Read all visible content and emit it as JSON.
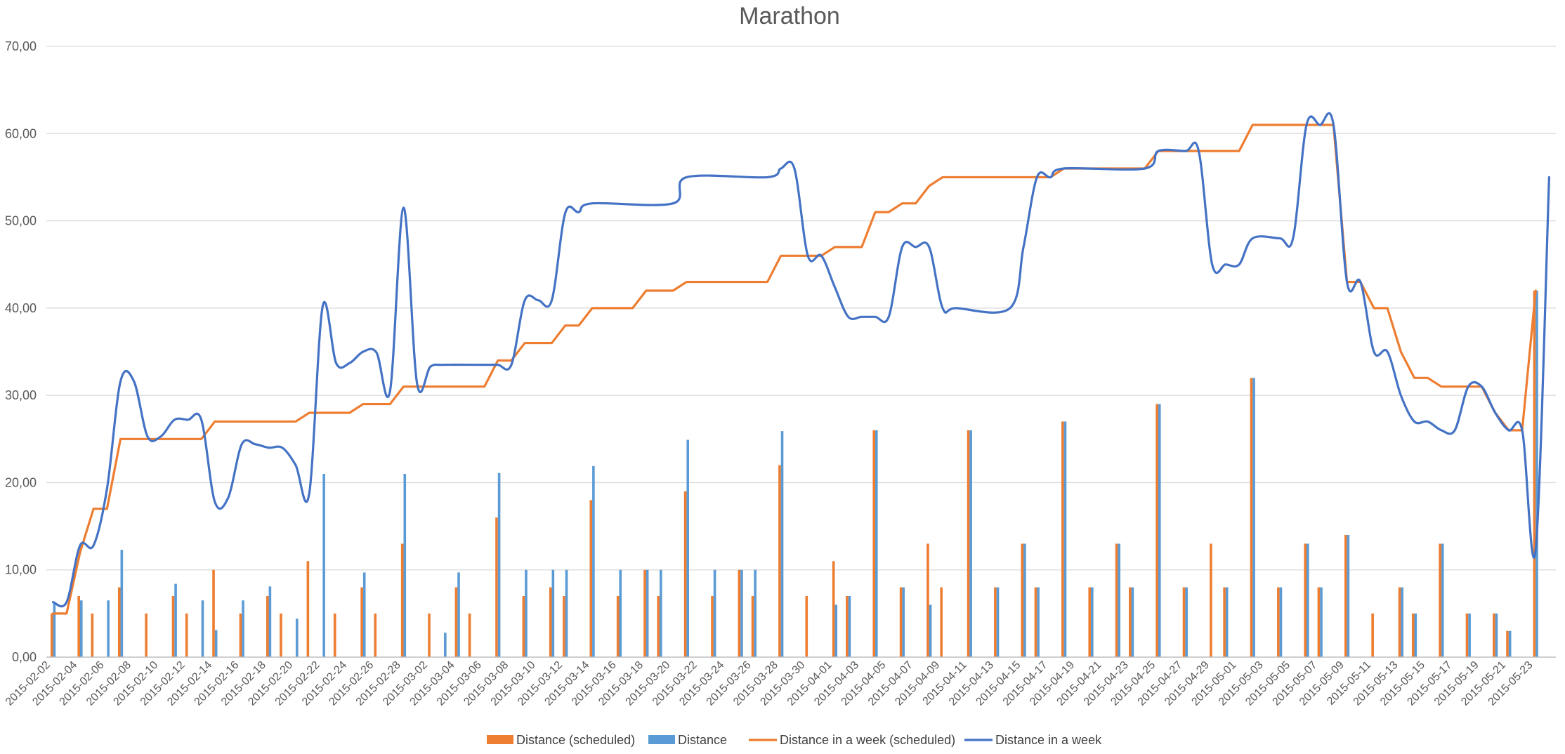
{
  "chart_data": {
    "type": "bar",
    "title": "Marathon",
    "ylim": [
      0,
      70
    ],
    "yticks": [
      "0,00",
      "10,00",
      "20,00",
      "30,00",
      "40,00",
      "50,00",
      "60,00",
      "70,00"
    ],
    "grid": true,
    "legend_position": "bottom",
    "x_start": "2015-02-02",
    "x_end": "2015-05-24",
    "x_tick_labels": [
      "2015-02-02",
      "2015-02-04",
      "2015-02-06",
      "2015-02-08",
      "2015-02-10",
      "2015-02-12",
      "2015-02-14",
      "2015-02-16",
      "2015-02-18",
      "2015-02-20",
      "2015-02-22",
      "2015-02-24",
      "2015-02-26",
      "2015-02-28",
      "2015-03-02",
      "2015-03-04",
      "2015-03-06",
      "2015-03-08",
      "2015-03-10",
      "2015-03-12",
      "2015-03-14",
      "2015-03-16",
      "2015-03-18",
      "2015-03-20",
      "2015-03-22",
      "2015-03-24",
      "2015-03-26",
      "2015-03-28",
      "2015-03-30",
      "2015-04-01",
      "2015-04-03",
      "2015-04-05",
      "2015-04-07",
      "2015-04-09",
      "2015-04-11",
      "2015-04-13",
      "2015-04-15",
      "2015-04-17",
      "2015-04-19",
      "2015-04-21",
      "2015-04-23",
      "2015-04-25",
      "2015-04-27",
      "2015-04-29",
      "2015-05-01",
      "2015-05-03",
      "2015-05-05",
      "2015-05-07",
      "2015-05-09",
      "2015-05-11",
      "2015-05-13",
      "2015-05-15",
      "2015-05-17",
      "2015-05-19",
      "2015-05-21",
      "2015-05-23"
    ],
    "colors": {
      "scheduled_bar": "#ED7D31",
      "distance_bar": "#5B9BD5",
      "week_scheduled_line": "#ED7D31",
      "week_line": "#4472C4",
      "grid": "#D9D9D9",
      "axis": "#BFBFBF"
    },
    "series": [
      {
        "name": "Distance (scheduled)",
        "type": "bar",
        "points": [
          [
            "2015-02-02",
            5
          ],
          [
            "2015-02-04",
            7
          ],
          [
            "2015-02-05",
            5
          ],
          [
            "2015-02-07",
            8
          ],
          [
            "2015-02-09",
            5
          ],
          [
            "2015-02-11",
            7
          ],
          [
            "2015-02-12",
            5
          ],
          [
            "2015-02-14",
            10
          ],
          [
            "2015-02-16",
            5
          ],
          [
            "2015-02-18",
            7
          ],
          [
            "2015-02-19",
            5
          ],
          [
            "2015-02-21",
            11
          ],
          [
            "2015-02-23",
            5
          ],
          [
            "2015-02-25",
            8
          ],
          [
            "2015-02-26",
            5
          ],
          [
            "2015-02-28",
            13
          ],
          [
            "2015-03-02",
            5
          ],
          [
            "2015-03-04",
            8
          ],
          [
            "2015-03-05",
            5
          ],
          [
            "2015-03-07",
            16
          ],
          [
            "2015-03-09",
            7
          ],
          [
            "2015-03-11",
            8
          ],
          [
            "2015-03-12",
            7
          ],
          [
            "2015-03-14",
            18
          ],
          [
            "2015-03-16",
            7
          ],
          [
            "2015-03-18",
            10
          ],
          [
            "2015-03-19",
            7
          ],
          [
            "2015-03-21",
            19
          ],
          [
            "2015-03-23",
            7
          ],
          [
            "2015-03-25",
            10
          ],
          [
            "2015-03-26",
            7
          ],
          [
            "2015-03-28",
            22
          ],
          [
            "2015-03-30",
            7
          ],
          [
            "2015-04-01",
            11
          ],
          [
            "2015-04-02",
            7
          ],
          [
            "2015-04-04",
            26
          ],
          [
            "2015-04-06",
            8
          ],
          [
            "2015-04-08",
            13
          ],
          [
            "2015-04-09",
            8
          ],
          [
            "2015-04-11",
            26
          ],
          [
            "2015-04-13",
            8
          ],
          [
            "2015-04-15",
            13
          ],
          [
            "2015-04-16",
            8
          ],
          [
            "2015-04-18",
            27
          ],
          [
            "2015-04-20",
            8
          ],
          [
            "2015-04-22",
            13
          ],
          [
            "2015-04-23",
            8
          ],
          [
            "2015-04-25",
            29
          ],
          [
            "2015-04-27",
            8
          ],
          [
            "2015-04-29",
            13
          ],
          [
            "2015-04-30",
            8
          ],
          [
            "2015-05-02",
            32
          ],
          [
            "2015-05-04",
            8
          ],
          [
            "2015-05-06",
            13
          ],
          [
            "2015-05-07",
            8
          ],
          [
            "2015-05-09",
            14
          ],
          [
            "2015-05-11",
            5
          ],
          [
            "2015-05-13",
            8
          ],
          [
            "2015-05-14",
            5
          ],
          [
            "2015-05-16",
            13
          ],
          [
            "2015-05-18",
            5
          ],
          [
            "2015-05-20",
            5
          ],
          [
            "2015-05-21",
            3
          ],
          [
            "2015-05-23",
            42
          ]
        ]
      },
      {
        "name": "Distance",
        "type": "bar",
        "points": [
          [
            "2015-02-02",
            6.3
          ],
          [
            "2015-02-04",
            6.5
          ],
          [
            "2015-02-06",
            6.5
          ],
          [
            "2015-02-07",
            12.3
          ],
          [
            "2015-02-11",
            8.4
          ],
          [
            "2015-02-13",
            6.5
          ],
          [
            "2015-02-14",
            3.1
          ],
          [
            "2015-02-16",
            6.5
          ],
          [
            "2015-02-18",
            8.1
          ],
          [
            "2015-02-20",
            4.4
          ],
          [
            "2015-02-22",
            21
          ],
          [
            "2015-02-25",
            9.7
          ],
          [
            "2015-02-28",
            21
          ],
          [
            "2015-03-03",
            2.8
          ],
          [
            "2015-03-04",
            9.7
          ],
          [
            "2015-03-07",
            21.1
          ],
          [
            "2015-03-09",
            10
          ],
          [
            "2015-03-11",
            10
          ],
          [
            "2015-03-12",
            10
          ],
          [
            "2015-03-14",
            21.9
          ],
          [
            "2015-03-16",
            10
          ],
          [
            "2015-03-18",
            10
          ],
          [
            "2015-03-19",
            10
          ],
          [
            "2015-03-21",
            24.9
          ],
          [
            "2015-03-23",
            10
          ],
          [
            "2015-03-25",
            10
          ],
          [
            "2015-03-26",
            10
          ],
          [
            "2015-03-28",
            25.9
          ],
          [
            "2015-04-01",
            6
          ],
          [
            "2015-04-02",
            7
          ],
          [
            "2015-04-04",
            26
          ],
          [
            "2015-04-06",
            8
          ],
          [
            "2015-04-08",
            6
          ],
          [
            "2015-04-11",
            26
          ],
          [
            "2015-04-13",
            8
          ],
          [
            "2015-04-15",
            13
          ],
          [
            "2015-04-16",
            8
          ],
          [
            "2015-04-18",
            27
          ],
          [
            "2015-04-20",
            8
          ],
          [
            "2015-04-22",
            13
          ],
          [
            "2015-04-23",
            8
          ],
          [
            "2015-04-25",
            29
          ],
          [
            "2015-04-27",
            8
          ],
          [
            "2015-04-30",
            8
          ],
          [
            "2015-05-02",
            32
          ],
          [
            "2015-05-04",
            8
          ],
          [
            "2015-05-06",
            13
          ],
          [
            "2015-05-07",
            8
          ],
          [
            "2015-05-09",
            14
          ],
          [
            "2015-05-13",
            8
          ],
          [
            "2015-05-14",
            5
          ],
          [
            "2015-05-16",
            13
          ],
          [
            "2015-05-18",
            5
          ],
          [
            "2015-05-20",
            5
          ],
          [
            "2015-05-21",
            3
          ],
          [
            "2015-05-23",
            42
          ]
        ]
      },
      {
        "name": "Distance in a week (scheduled)",
        "type": "line",
        "points": [
          [
            "2015-02-02",
            5
          ],
          [
            "2015-02-03",
            5
          ],
          [
            "2015-02-04",
            12
          ],
          [
            "2015-02-05",
            17
          ],
          [
            "2015-02-06",
            17
          ],
          [
            "2015-02-07",
            25
          ],
          [
            "2015-02-08",
            25
          ],
          [
            "2015-02-13",
            25
          ],
          [
            "2015-02-14",
            27
          ],
          [
            "2015-02-20",
            27
          ],
          [
            "2015-02-21",
            28
          ],
          [
            "2015-02-24",
            28
          ],
          [
            "2015-02-25",
            29
          ],
          [
            "2015-02-27",
            29
          ],
          [
            "2015-02-28",
            31
          ],
          [
            "2015-03-06",
            31
          ],
          [
            "2015-03-07",
            34
          ],
          [
            "2015-03-08",
            34
          ],
          [
            "2015-03-09",
            36
          ],
          [
            "2015-03-11",
            36
          ],
          [
            "2015-03-12",
            38
          ],
          [
            "2015-03-13",
            38
          ],
          [
            "2015-03-14",
            40
          ],
          [
            "2015-03-17",
            40
          ],
          [
            "2015-03-18",
            42
          ],
          [
            "2015-03-20",
            42
          ],
          [
            "2015-03-21",
            43
          ],
          [
            "2015-03-27",
            43
          ],
          [
            "2015-03-28",
            46
          ],
          [
            "2015-03-31",
            46
          ],
          [
            "2015-04-01",
            47
          ],
          [
            "2015-04-03",
            47
          ],
          [
            "2015-04-04",
            51
          ],
          [
            "2015-04-05",
            51
          ],
          [
            "2015-04-06",
            52
          ],
          [
            "2015-04-07",
            52
          ],
          [
            "2015-04-08",
            54
          ],
          [
            "2015-04-09",
            55
          ],
          [
            "2015-04-17",
            55
          ],
          [
            "2015-04-18",
            56
          ],
          [
            "2015-04-24",
            56
          ],
          [
            "2015-04-25",
            58
          ],
          [
            "2015-05-01",
            58
          ],
          [
            "2015-05-02",
            61
          ],
          [
            "2015-05-08",
            61
          ],
          [
            "2015-05-09",
            43
          ],
          [
            "2015-05-10",
            43
          ],
          [
            "2015-05-11",
            40
          ],
          [
            "2015-05-12",
            40
          ],
          [
            "2015-05-13",
            35
          ],
          [
            "2015-05-14",
            32
          ],
          [
            "2015-05-15",
            32
          ],
          [
            "2015-05-16",
            31
          ],
          [
            "2015-05-19",
            31
          ],
          [
            "2015-05-20",
            28
          ],
          [
            "2015-05-21",
            26
          ],
          [
            "2015-05-22",
            26
          ],
          [
            "2015-05-23",
            42
          ]
        ]
      },
      {
        "name": "Distance in a week",
        "type": "line",
        "points": [
          [
            "2015-02-02",
            6.3
          ],
          [
            "2015-02-03",
            6.3
          ],
          [
            "2015-02-04",
            12.8
          ],
          [
            "2015-02-05",
            12.8
          ],
          [
            "2015-02-06",
            19.3
          ],
          [
            "2015-02-07",
            31.6
          ],
          [
            "2015-02-08",
            31.6
          ],
          [
            "2015-02-09",
            25.3
          ],
          [
            "2015-02-10",
            25.3
          ],
          [
            "2015-02-11",
            27.2
          ],
          [
            "2015-02-12",
            27.2
          ],
          [
            "2015-02-13",
            27.2
          ],
          [
            "2015-02-14",
            17.8
          ],
          [
            "2015-02-15",
            18.3
          ],
          [
            "2015-02-16",
            24.4
          ],
          [
            "2015-02-17",
            24.4
          ],
          [
            "2015-02-18",
            24
          ],
          [
            "2015-02-19",
            24
          ],
          [
            "2015-02-20",
            22
          ],
          [
            "2015-02-21",
            18.7
          ],
          [
            "2015-02-22",
            40.2
          ],
          [
            "2015-02-23",
            33.7
          ],
          [
            "2015-02-24",
            33.7
          ],
          [
            "2015-02-25",
            35
          ],
          [
            "2015-02-26",
            34.9
          ],
          [
            "2015-02-27",
            30.5
          ],
          [
            "2015-02-28",
            51.5
          ],
          [
            "2015-03-01",
            31.4
          ],
          [
            "2015-03-02",
            33.3
          ],
          [
            "2015-03-03",
            33.5
          ],
          [
            "2015-03-06",
            33.5
          ],
          [
            "2015-03-07",
            33.5
          ],
          [
            "2015-03-08",
            33.5
          ],
          [
            "2015-03-09",
            40.9
          ],
          [
            "2015-03-10",
            40.9
          ],
          [
            "2015-03-11",
            40.9
          ],
          [
            "2015-03-12",
            50.9
          ],
          [
            "2015-03-13",
            51
          ],
          [
            "2015-03-14",
            52
          ],
          [
            "2015-03-20",
            52
          ],
          [
            "2015-03-21",
            55
          ],
          [
            "2015-03-27",
            55
          ],
          [
            "2015-03-28",
            56
          ],
          [
            "2015-03-29",
            56
          ],
          [
            "2015-03-30",
            46
          ],
          [
            "2015-03-31",
            46
          ],
          [
            "2015-04-01",
            42.4
          ],
          [
            "2015-04-02",
            39
          ],
          [
            "2015-04-03",
            39
          ],
          [
            "2015-04-04",
            39
          ],
          [
            "2015-04-05",
            39
          ],
          [
            "2015-04-06",
            47
          ],
          [
            "2015-04-07",
            47
          ],
          [
            "2015-04-08",
            47
          ],
          [
            "2015-04-09",
            40
          ],
          [
            "2015-04-10",
            40
          ],
          [
            "2015-04-14",
            40
          ],
          [
            "2015-04-15",
            47
          ],
          [
            "2015-04-16",
            55
          ],
          [
            "2015-04-17",
            55
          ],
          [
            "2015-04-18",
            56
          ],
          [
            "2015-04-24",
            56
          ],
          [
            "2015-04-25",
            58
          ],
          [
            "2015-04-27",
            58
          ],
          [
            "2015-04-28",
            58
          ],
          [
            "2015-04-29",
            45
          ],
          [
            "2015-04-30",
            45
          ],
          [
            "2015-05-01",
            45
          ],
          [
            "2015-05-02",
            48
          ],
          [
            "2015-05-04",
            48
          ],
          [
            "2015-05-05",
            48
          ],
          [
            "2015-05-06",
            61
          ],
          [
            "2015-05-07",
            61
          ],
          [
            "2015-05-08",
            61
          ],
          [
            "2015-05-09",
            43
          ],
          [
            "2015-05-10",
            43
          ],
          [
            "2015-05-11",
            35
          ],
          [
            "2015-05-12",
            35
          ],
          [
            "2015-05-13",
            30
          ],
          [
            "2015-05-14",
            27
          ],
          [
            "2015-05-15",
            27
          ],
          [
            "2015-05-16",
            26
          ],
          [
            "2015-05-17",
            26
          ],
          [
            "2015-05-18",
            31
          ],
          [
            "2015-05-19",
            31
          ],
          [
            "2015-05-20",
            28
          ],
          [
            "2015-05-21",
            26
          ],
          [
            "2015-05-22",
            26
          ],
          [
            "2015-05-23",
            12.3
          ],
          [
            "2015-05-24",
            55
          ]
        ]
      }
    ]
  }
}
